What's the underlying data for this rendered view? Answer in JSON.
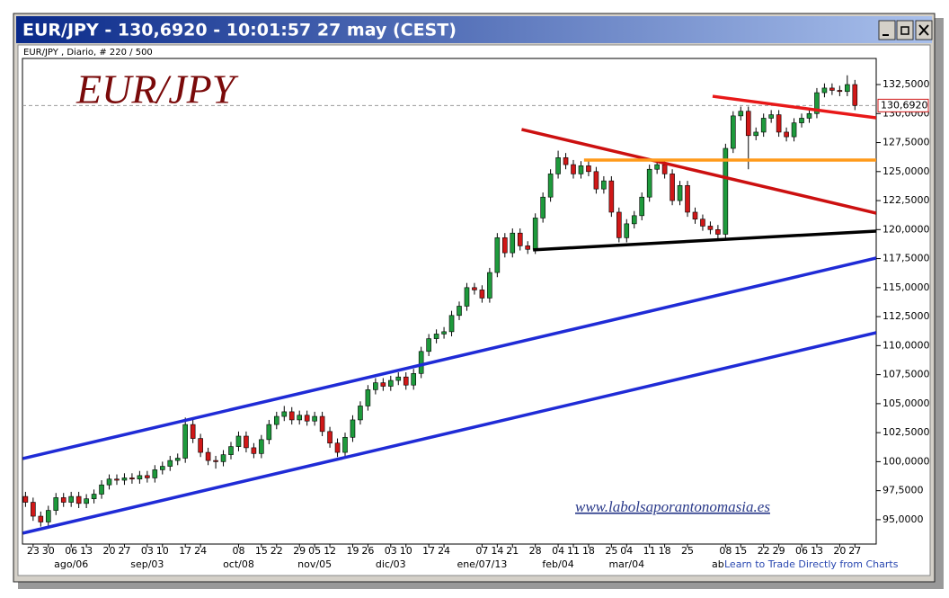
{
  "chart_data": {
    "type": "candlestick",
    "window_title": "EUR/JPY - 130,6920 - 10:01:57  27 may (CEST)",
    "subtitle": "EUR/JPY , Diario, # 220 / 500",
    "title": "EUR/JPY",
    "watermark": "www.labolsaporantonomasia.es",
    "footer_link": "Learn to Trade Directly from Charts",
    "categories": [
      null,
      "23",
      null,
      "30",
      null,
      null,
      "06",
      null,
      "13",
      null,
      null,
      "20",
      null,
      "27",
      null,
      null,
      "03",
      null,
      "10",
      null,
      null,
      "17",
      null,
      "24",
      null,
      null,
      null,
      null,
      "08",
      null,
      null,
      "15",
      null,
      "22",
      null,
      null,
      "29",
      null,
      "05",
      null,
      "12",
      null,
      null,
      "19",
      null,
      "26",
      null,
      null,
      "03",
      null,
      "10",
      null,
      null,
      "17",
      null,
      "24",
      null,
      null,
      null,
      null,
      "07",
      null,
      "14",
      null,
      "21",
      null,
      null,
      "28",
      null,
      null,
      "04",
      null,
      "11",
      null,
      "18",
      null,
      null,
      "25",
      null,
      "04",
      null,
      null,
      "11",
      null,
      "18",
      null,
      null,
      "25",
      null,
      null,
      null,
      null,
      "08",
      null,
      "15",
      null,
      null,
      "22",
      null,
      "29",
      null,
      null,
      "06",
      null,
      "13",
      null,
      null,
      "20",
      null,
      "27"
    ],
    "months": [
      null,
      null,
      null,
      null,
      null,
      null,
      "ago/06",
      null,
      null,
      null,
      null,
      null,
      null,
      null,
      null,
      null,
      "sep/03",
      null,
      null,
      null,
      null,
      null,
      null,
      null,
      null,
      null,
      null,
      null,
      "oct/08",
      null,
      null,
      null,
      null,
      null,
      null,
      null,
      null,
      null,
      "nov/05",
      null,
      null,
      null,
      null,
      null,
      null,
      null,
      null,
      null,
      "dic/03",
      null,
      null,
      null,
      null,
      null,
      null,
      null,
      null,
      null,
      null,
      null,
      "ene/07/13",
      null,
      null,
      null,
      null,
      null,
      null,
      null,
      null,
      null,
      "feb/04",
      null,
      null,
      null,
      null,
      null,
      null,
      null,
      null,
      "mar/04",
      null,
      null,
      null,
      null,
      null,
      null,
      null,
      null,
      null,
      null,
      null,
      "ab",
      null,
      null,
      null,
      null,
      null,
      null,
      null,
      null,
      null,
      null,
      null,
      null,
      null,
      null,
      null,
      null,
      null,
      null
    ],
    "ohlc": [
      [
        97.0,
        97.4,
        96.1,
        96.5
      ],
      [
        96.5,
        96.9,
        94.9,
        95.3
      ],
      [
        95.3,
        95.7,
        94.4,
        94.8
      ],
      [
        94.8,
        96.2,
        94.4,
        95.8
      ],
      [
        95.8,
        97.3,
        95.4,
        96.9
      ],
      [
        96.9,
        97.3,
        96.1,
        96.5
      ],
      [
        96.5,
        97.4,
        96.1,
        97.0
      ],
      [
        97.0,
        97.4,
        96.0,
        96.4
      ],
      [
        96.4,
        97.2,
        96.0,
        96.8
      ],
      [
        96.8,
        97.6,
        96.4,
        97.2
      ],
      [
        97.2,
        98.4,
        96.8,
        98.0
      ],
      [
        98.0,
        98.9,
        97.6,
        98.5
      ],
      [
        98.5,
        98.9,
        98.0,
        98.4
      ],
      [
        98.4,
        99.0,
        98.0,
        98.6
      ],
      [
        98.6,
        99.0,
        98.1,
        98.5
      ],
      [
        98.5,
        99.2,
        98.1,
        98.8
      ],
      [
        98.8,
        99.2,
        98.2,
        98.6
      ],
      [
        98.6,
        99.7,
        98.2,
        99.3
      ],
      [
        99.3,
        100.0,
        98.9,
        99.6
      ],
      [
        99.6,
        100.5,
        99.2,
        100.1
      ],
      [
        100.1,
        100.7,
        99.7,
        100.3
      ],
      [
        100.3,
        103.8,
        99.9,
        103.2
      ],
      [
        103.2,
        103.6,
        101.6,
        102.0
      ],
      [
        102.0,
        102.4,
        100.4,
        100.8
      ],
      [
        100.8,
        101.2,
        99.7,
        100.1
      ],
      [
        100.1,
        100.5,
        99.4,
        100.0
      ],
      [
        100.0,
        101.0,
        99.6,
        100.6
      ],
      [
        100.6,
        101.7,
        100.2,
        101.3
      ],
      [
        101.3,
        102.6,
        100.9,
        102.2
      ],
      [
        102.2,
        102.6,
        100.8,
        101.2
      ],
      [
        101.2,
        101.6,
        100.3,
        100.7
      ],
      [
        100.7,
        102.3,
        100.3,
        101.9
      ],
      [
        101.9,
        103.6,
        101.5,
        103.2
      ],
      [
        103.2,
        104.3,
        102.8,
        103.9
      ],
      [
        103.9,
        104.8,
        103.5,
        104.3
      ],
      [
        104.3,
        104.7,
        103.2,
        103.6
      ],
      [
        103.6,
        104.4,
        103.2,
        104.0
      ],
      [
        104.0,
        104.4,
        103.1,
        103.5
      ],
      [
        103.5,
        104.3,
        103.1,
        103.9
      ],
      [
        103.9,
        104.3,
        102.2,
        102.6
      ],
      [
        102.6,
        103.0,
        101.2,
        101.6
      ],
      [
        101.6,
        102.0,
        100.4,
        100.8
      ],
      [
        100.8,
        102.5,
        100.4,
        102.1
      ],
      [
        102.1,
        104.0,
        101.7,
        103.6
      ],
      [
        103.6,
        105.2,
        103.2,
        104.8
      ],
      [
        104.8,
        106.6,
        104.4,
        106.2
      ],
      [
        106.2,
        107.2,
        105.8,
        106.8
      ],
      [
        106.8,
        107.2,
        106.1,
        106.5
      ],
      [
        106.5,
        107.4,
        106.1,
        107.0
      ],
      [
        107.0,
        107.7,
        106.6,
        107.3
      ],
      [
        107.3,
        107.7,
        106.2,
        106.6
      ],
      [
        106.6,
        108.0,
        106.2,
        107.6
      ],
      [
        107.6,
        109.9,
        107.2,
        109.5
      ],
      [
        109.5,
        111.0,
        109.1,
        110.6
      ],
      [
        110.6,
        111.4,
        110.2,
        111.0
      ],
      [
        111.0,
        111.6,
        110.6,
        111.2
      ],
      [
        111.2,
        113.0,
        110.8,
        112.6
      ],
      [
        112.6,
        113.8,
        112.2,
        113.4
      ],
      [
        113.4,
        115.4,
        113.0,
        115.0
      ],
      [
        115.0,
        115.4,
        114.4,
        114.8
      ],
      [
        114.8,
        115.2,
        113.7,
        114.1
      ],
      [
        114.1,
        116.7,
        113.7,
        116.3
      ],
      [
        116.3,
        119.7,
        115.9,
        119.3
      ],
      [
        119.3,
        119.7,
        117.6,
        118.0
      ],
      [
        118.0,
        120.1,
        117.6,
        119.7
      ],
      [
        119.7,
        120.1,
        118.2,
        118.6
      ],
      [
        118.6,
        119.0,
        117.9,
        118.3
      ],
      [
        118.3,
        121.4,
        117.9,
        121.0
      ],
      [
        121.0,
        123.2,
        120.6,
        122.8
      ],
      [
        122.8,
        125.2,
        122.4,
        124.8
      ],
      [
        124.8,
        126.8,
        124.4,
        126.2
      ],
      [
        126.2,
        126.6,
        125.2,
        125.6
      ],
      [
        125.6,
        126.0,
        124.4,
        124.8
      ],
      [
        124.8,
        125.9,
        124.4,
        125.5
      ],
      [
        125.5,
        125.9,
        124.6,
        125.0
      ],
      [
        125.0,
        125.4,
        123.1,
        123.5
      ],
      [
        123.5,
        124.6,
        123.1,
        124.2
      ],
      [
        124.2,
        124.6,
        121.1,
        121.5
      ],
      [
        121.5,
        121.9,
        118.9,
        119.3
      ],
      [
        119.3,
        120.9,
        118.9,
        120.5
      ],
      [
        120.5,
        121.6,
        120.1,
        121.2
      ],
      [
        121.2,
        123.2,
        120.8,
        122.8
      ],
      [
        122.8,
        125.6,
        122.4,
        125.2
      ],
      [
        125.2,
        126.0,
        124.8,
        125.6
      ],
      [
        125.6,
        126.0,
        124.4,
        124.8
      ],
      [
        124.8,
        125.2,
        122.1,
        122.5
      ],
      [
        122.5,
        124.2,
        122.1,
        123.8
      ],
      [
        123.8,
        124.2,
        121.1,
        121.5
      ],
      [
        121.5,
        121.9,
        120.5,
        120.9
      ],
      [
        120.9,
        121.3,
        119.9,
        120.3
      ],
      [
        120.3,
        120.7,
        119.6,
        120.0
      ],
      [
        120.0,
        120.4,
        119.2,
        119.6
      ],
      [
        119.6,
        127.4,
        119.2,
        127.0
      ],
      [
        127.0,
        130.2,
        126.6,
        129.8
      ],
      [
        129.8,
        130.6,
        129.4,
        130.2
      ],
      [
        130.2,
        130.6,
        125.2,
        128.1
      ],
      [
        128.1,
        128.8,
        127.7,
        128.4
      ],
      [
        128.4,
        130.0,
        128.0,
        129.6
      ],
      [
        129.6,
        130.3,
        129.2,
        129.9
      ],
      [
        129.9,
        130.3,
        128.0,
        128.4
      ],
      [
        128.4,
        128.8,
        127.6,
        128.0
      ],
      [
        128.0,
        129.6,
        127.6,
        129.2
      ],
      [
        129.2,
        130.0,
        128.8,
        129.6
      ],
      [
        129.6,
        130.4,
        129.2,
        130.0
      ],
      [
        130.0,
        132.2,
        129.6,
        131.8
      ],
      [
        131.8,
        132.6,
        131.4,
        132.2
      ],
      [
        132.2,
        132.6,
        131.6,
        132.0
      ],
      [
        132.0,
        132.4,
        131.5,
        131.9
      ],
      [
        131.9,
        133.3,
        131.5,
        132.5
      ],
      [
        132.5,
        132.9,
        130.3,
        130.7
      ]
    ],
    "up_color": "#1e9a3c",
    "down_color": "#d01818",
    "xlim": [
      -0.4,
      111.8
    ],
    "ylim": [
      92.9,
      134.75
    ],
    "yticks": [
      {
        "value": 95,
        "label": "95,0000"
      },
      {
        "value": 97.5,
        "label": "97,5000"
      },
      {
        "value": 100,
        "label": "100,0000"
      },
      {
        "value": 102.5,
        "label": "102,5000"
      },
      {
        "value": 105,
        "label": "105,0000"
      },
      {
        "value": 107.5,
        "label": "107,5000"
      },
      {
        "value": 110,
        "label": "110,0000"
      },
      {
        "value": 112.5,
        "label": "112,5000"
      },
      {
        "value": 115,
        "label": "115,0000"
      },
      {
        "value": 117.5,
        "label": "117,5000"
      },
      {
        "value": 120,
        "label": "120,0000"
      },
      {
        "value": 122.5,
        "label": "122,5000"
      },
      {
        "value": 125,
        "label": "125,0000"
      },
      {
        "value": 127.5,
        "label": "127,5000"
      },
      {
        "value": 130,
        "label": "130,0000"
      },
      {
        "value": 132.5,
        "label": "132,5000"
      }
    ],
    "current_price": {
      "value": 130.692,
      "label": "130,6920"
    },
    "trendlines": [
      {
        "color": "#1f2bd6",
        "x": [
          -0.35,
          111.8
        ],
        "y": [
          93.84,
          111.12
        ]
      },
      {
        "color": "#1f2bd6",
        "x": [
          -0.35,
          111.8
        ],
        "y": [
          100.27,
          117.55
        ]
      },
      {
        "color": "#cc1010",
        "x": [
          65.2,
          111.8
        ],
        "y": [
          128.63,
          121.42
        ]
      },
      {
        "color": "#e81818",
        "x": [
          90.3,
          111.8
        ],
        "y": [
          131.49,
          129.63
        ]
      },
      {
        "color": "#ff9a1a",
        "x": [
          73.4,
          111.8
        ],
        "y": [
          125.99,
          125.99
        ]
      },
      {
        "color": "#000000",
        "x": [
          66.7,
          111.8
        ],
        "y": [
          118.25,
          119.87
        ]
      }
    ]
  }
}
